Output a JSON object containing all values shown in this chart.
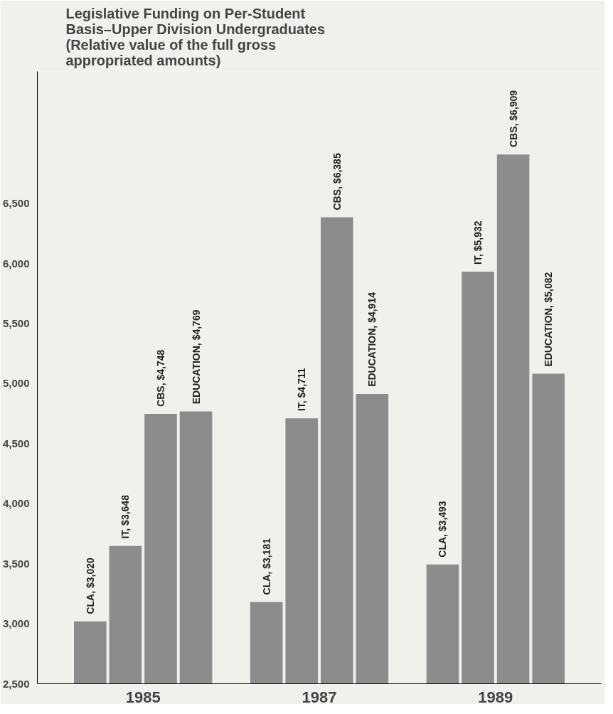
{
  "chart_data": {
    "type": "bar",
    "title": "Legislative Funding on Per-Student Basis–Upper Division Undergraduates (Relative value of the full gross appropriated amounts)",
    "categories": [
      "1985",
      "1987",
      "1989"
    ],
    "series": [
      {
        "color": "#8c8c8c",
        "values": [
          3020,
          3181,
          3493
        ],
        "value_labels": [
          "CLA, $3,020",
          "CLA, $3,181",
          "CLA, $3,493"
        ]
      },
      {
        "color": "#8c8c8c",
        "values": [
          3648,
          4711,
          5932
        ],
        "value_labels": [
          "IT, $3,648",
          "IT, $4,711",
          "IT, $5,932"
        ]
      },
      {
        "color": "#8c8c8c",
        "values": [
          4748,
          6385,
          6909
        ],
        "value_labels": [
          "CBS, $4,748",
          "CBS, $6,385",
          "CBS, $6,909"
        ]
      },
      {
        "color": "#8c8c8c",
        "values": [
          4769,
          4914,
          5082
        ],
        "value_labels": [
          "EDUCATION, $4,769",
          "EDUCATION, $4,914",
          "EDUCATION, $5,082"
        ]
      }
    ],
    "ylim": [
      2500,
      7600
    ],
    "yticks": [
      {
        "value": 2500,
        "label": "2,500"
      },
      {
        "value": 3000,
        "label": "3,000"
      },
      {
        "value": 3500,
        "label": "3,500"
      },
      {
        "value": 4000,
        "label": "4,000"
      },
      {
        "value": 4500,
        "label": "4,500"
      },
      {
        "value": 5000,
        "label": "5,000"
      },
      {
        "value": 5500,
        "label": "5,500"
      },
      {
        "value": 6000,
        "label": "6,000"
      },
      {
        "value": 6500,
        "label": "6,500"
      }
    ],
    "grid": false
  }
}
